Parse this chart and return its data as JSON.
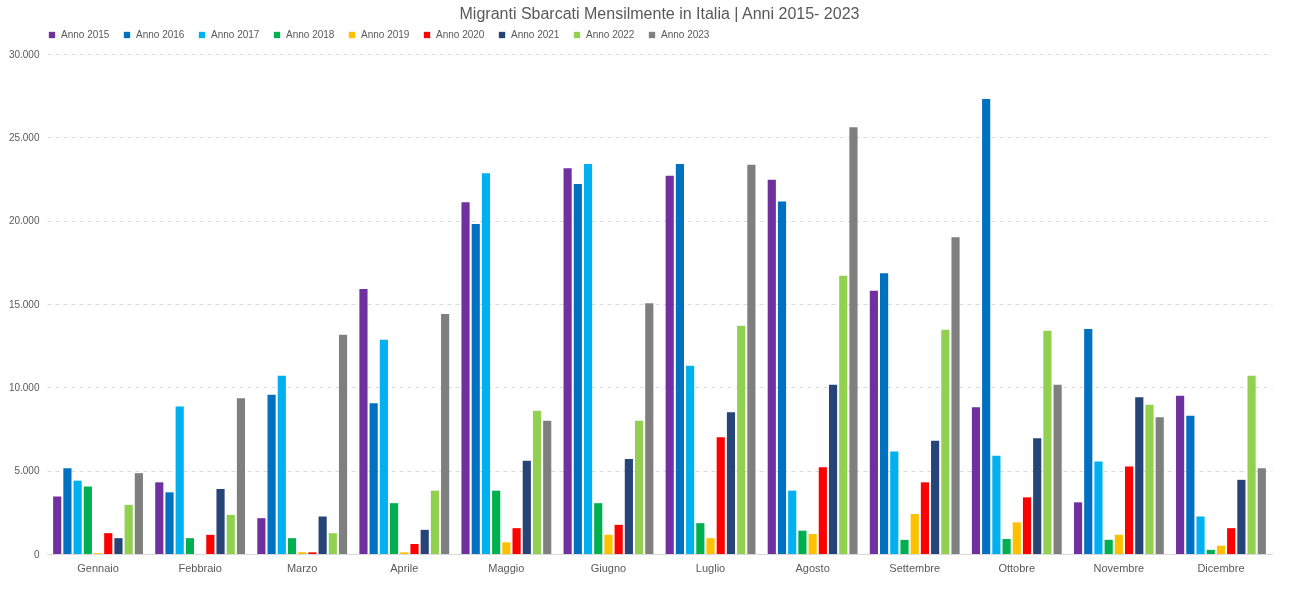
{
  "chart_data": {
    "type": "bar",
    "title": "Migranti Sbarcati Mensilmente in Italia | Anni 2015- 2023",
    "categories": [
      "Gennaio",
      "Febbraio",
      "Marzo",
      "Aprile",
      "Maggio",
      "Giugno",
      "Luglio",
      "Agosto",
      "Settembre",
      "Ottobre",
      "Novembre",
      "Dicembre"
    ],
    "series": [
      {
        "name": "Anno 2015",
        "color": "#7030a0",
        "values": [
          3450,
          4300,
          2150,
          15900,
          21100,
          23150,
          22700,
          22450,
          15800,
          8800,
          3100,
          9500
        ]
      },
      {
        "name": "Anno 2016",
        "color": "#0070c0",
        "values": [
          5150,
          3700,
          9550,
          9050,
          19800,
          22200,
          23400,
          21150,
          16850,
          27300,
          13500,
          8300
        ]
      },
      {
        "name": "Anno 2017",
        "color": "#00b0f0",
        "values": [
          4400,
          8850,
          10700,
          12850,
          22850,
          23400,
          11300,
          3800,
          6150,
          5900,
          5550,
          2250
        ]
      },
      {
        "name": "Anno 2018",
        "color": "#00b050",
        "values": [
          4050,
          950,
          950,
          3050,
          3800,
          3050,
          1850,
          1400,
          850,
          900,
          850,
          250
        ]
      },
      {
        "name": "Anno 2019",
        "color": "#ffc000",
        "values": [
          50,
          null,
          100,
          100,
          700,
          1150,
          950,
          1200,
          2400,
          1900,
          1150,
          500
        ]
      },
      {
        "name": "Anno 2020",
        "color": "#ff0000",
        "values": [
          1250,
          1150,
          100,
          600,
          1550,
          1750,
          7000,
          5200,
          4300,
          3400,
          5250,
          1550
        ]
      },
      {
        "name": "Anno 2021",
        "color": "#264478",
        "values": [
          950,
          3900,
          2250,
          1450,
          5600,
          5700,
          8500,
          10150,
          6800,
          6950,
          9400,
          4450
        ]
      },
      {
        "name": "Anno 2022",
        "color": "#92d050",
        "values": [
          2950,
          2350,
          1250,
          3800,
          8600,
          8000,
          13700,
          16700,
          13450,
          13400,
          8950,
          10700
        ]
      },
      {
        "name": "Anno 2023",
        "color": "#7f7f7f",
        "values": [
          4850,
          9350,
          13150,
          14400,
          8000,
          15050,
          23350,
          25600,
          19000,
          10150,
          8200,
          5150
        ]
      }
    ],
    "ylim": [
      0,
      30000
    ],
    "yticks": [
      {
        "value": 0,
        "label": "0"
      },
      {
        "value": 5000,
        "label": "5.000"
      },
      {
        "value": 10000,
        "label": "10.000"
      },
      {
        "value": 15000,
        "label": "15.000"
      },
      {
        "value": 20000,
        "label": "20.000"
      },
      {
        "value": 25000,
        "label": "25.000"
      },
      {
        "value": 30000,
        "label": "30.000"
      }
    ],
    "grid": "y",
    "legend": "top"
  }
}
